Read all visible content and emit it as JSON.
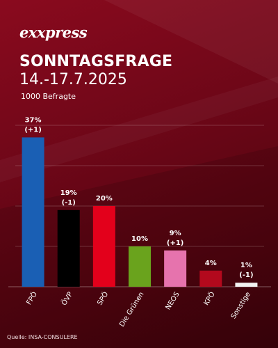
{
  "brand": {
    "logo_text": "exxpress"
  },
  "header": {
    "title": "SONNTAGSFRAGE",
    "subtitle": "14.-17.7.2025",
    "note": "1000 Befragte"
  },
  "footer": {
    "source": "Quelle:  INSA-CONSULERE"
  },
  "chart_data": {
    "type": "bar",
    "title": "SONNTAGSFRAGE",
    "xlabel": "",
    "ylabel": "",
    "unit": "%",
    "ylim": [
      0,
      40
    ],
    "grid": true,
    "categories": [
      "FPÖ",
      "ÖVP",
      "SPÖ",
      "Die Grünen",
      "NEOS",
      "KPÖ",
      "Sonstige"
    ],
    "values": [
      37,
      19,
      20,
      10,
      9,
      4,
      1
    ],
    "value_labels": [
      "37%",
      "19%",
      "20%",
      "10%",
      "9%",
      "4%",
      "1%"
    ],
    "change_labels": [
      "(+1)",
      "(-1)",
      "",
      "",
      "(+1)",
      "",
      "(-1)"
    ],
    "colors": [
      "#1a5fb4",
      "#000000",
      "#e3001b",
      "#6aa31d",
      "#e673ad",
      "#b3091d",
      "#f2f2f2"
    ]
  }
}
